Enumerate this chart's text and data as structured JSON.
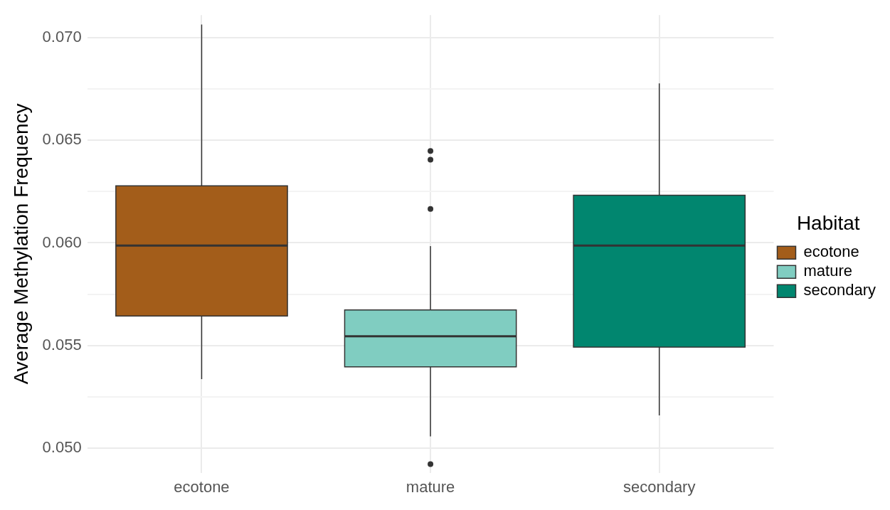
{
  "chart_data": {
    "type": "box",
    "ylabel": "Average Methylation Frequency",
    "legend_title": "Habitat",
    "legend": "right",
    "grid": true,
    "categories": [
      "ecotone",
      "mature",
      "secondary"
    ],
    "series": [
      {
        "name": "ecotone",
        "color": "#a35d1a",
        "boxes": [
          {
            "low": 0.05336,
            "q1": 0.05644,
            "median": 0.05987,
            "q3": 0.06278,
            "high": 0.07064
          },
          null,
          null
        ]
      },
      {
        "name": "mature",
        "color": "#80cdc1",
        "boxes": [
          null,
          {
            "low": 0.05057,
            "q1": 0.05396,
            "median": 0.05545,
            "q3": 0.05673,
            "high": 0.05984,
            "outliers": [
              0.06448,
              0.06405,
              0.06165,
              0.04922
            ]
          },
          null
        ]
      },
      {
        "name": "secondary",
        "color": "#01866f",
        "boxes": [
          null,
          null,
          {
            "low": 0.05159,
            "q1": 0.05492,
            "median": 0.05987,
            "q3": 0.06232,
            "high": 0.06777
          }
        ]
      }
    ],
    "ylim": [
      0.0488,
      0.0711
    ],
    "yticks": [
      {
        "value": 0.05,
        "label": "0.050"
      },
      {
        "value": 0.0525,
        "label": null
      },
      {
        "value": 0.055,
        "label": "0.055"
      },
      {
        "value": 0.0575,
        "label": null
      },
      {
        "value": 0.06,
        "label": "0.060"
      },
      {
        "value": 0.0625,
        "label": null
      },
      {
        "value": 0.065,
        "label": "0.065"
      },
      {
        "value": 0.0675,
        "label": null
      },
      {
        "value": 0.07,
        "label": "0.070"
      }
    ]
  }
}
